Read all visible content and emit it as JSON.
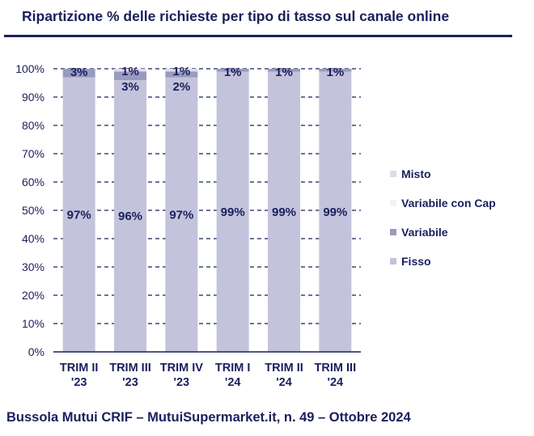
{
  "header": {
    "title": "Ripartizione %  delle richieste per tipo di tasso sul canale online"
  },
  "footer": {
    "text": "Bussola Mutui CRIF – MutuiSupermarket.it, n. 49 – Ottobre 2024"
  },
  "colors": {
    "Fisso": "#c3c3dc",
    "Variabile": "#9a9ac0",
    "Variabile con Cap": "#f2f2f8",
    "Misto": "#dcdcea",
    "text": "#1a1f5c",
    "grid": "#1a1f5c"
  },
  "chart_data": {
    "type": "bar",
    "stacked": true,
    "categories": [
      [
        "TRIM II",
        "'23"
      ],
      [
        "TRIM III",
        "'23"
      ],
      [
        "TRIM IV",
        "'23"
      ],
      [
        "TRIM I",
        "'24"
      ],
      [
        "TRIM II",
        "'24"
      ],
      [
        "TRIM III",
        "'24"
      ]
    ],
    "series": [
      {
        "name": "Fisso",
        "values": [
          97,
          96,
          97,
          99,
          99,
          99
        ],
        "labels": [
          "97%",
          "96%",
          "97%",
          "99%",
          "99%",
          "99%"
        ]
      },
      {
        "name": "Variabile",
        "values": [
          3,
          3,
          2,
          1,
          1,
          1
        ],
        "labels": [
          "3%",
          "3%",
          "2%",
          "1%",
          "1%",
          "1%"
        ]
      },
      {
        "name": "Variabile con Cap",
        "values": [
          0,
          0,
          0,
          0,
          0,
          0
        ],
        "labels": [
          "",
          "",
          "",
          "",
          "",
          ""
        ]
      },
      {
        "name": "Misto",
        "values": [
          0,
          1,
          1,
          0,
          0,
          0
        ],
        "labels": [
          "",
          "1%",
          "1%",
          "",
          "",
          ""
        ]
      }
    ],
    "legend_order": [
      "Misto",
      "Variabile con Cap",
      "Variabile",
      "Fisso"
    ],
    "legend_position": "right",
    "ylim": [
      0,
      100
    ],
    "yticks": [
      "0%",
      "10%",
      "20%",
      "30%",
      "40%",
      "50%",
      "60%",
      "70%",
      "80%",
      "90%",
      "100%"
    ],
    "grid": "horizontal dashed"
  }
}
